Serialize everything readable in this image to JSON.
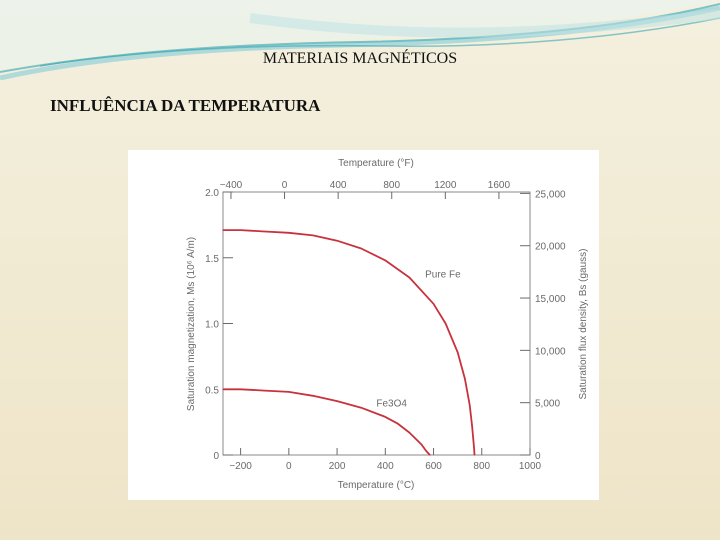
{
  "slide": {
    "title": "MATERIAIS MAGNÉTICOS",
    "subtitle": "INFLUÊNCIA DA TEMPERATURA",
    "accent_color": "#3aa6b4"
  },
  "chart_data": {
    "type": "line",
    "title": "",
    "xlabel": "Temperature (°C)",
    "xlabel_top": "Temperature (°F)",
    "ylabel": "Saturation magnetization, Ms (10⁶ A/m)",
    "ylabel_right": "Saturation flux density, Bs (gauss)",
    "xlim": [
      -273,
      1000
    ],
    "ylim": [
      0,
      2.0
    ],
    "x_ticks": [
      -200,
      0,
      200,
      400,
      600,
      800,
      1000
    ],
    "x_tick_labels": [
      "−200",
      "0",
      "200",
      "400",
      "600",
      "800",
      "1000"
    ],
    "x_top_ticks_F": [
      -400,
      0,
      400,
      800,
      1200,
      1600
    ],
    "x_top_tick_labels": [
      "−400",
      "0",
      "400",
      "800",
      "1200",
      "1600"
    ],
    "y_ticks": [
      0,
      0.5,
      1.0,
      1.5,
      2.0
    ],
    "y_tick_labels": [
      "0",
      "0.5",
      "1.0",
      "1.5",
      "2.0"
    ],
    "y_right_ticks_gauss": [
      0,
      5000,
      10000,
      15000,
      20000,
      25000
    ],
    "y_right_tick_labels": [
      "0",
      "5,000",
      "10,000",
      "15,000",
      "20,000",
      "25,000"
    ],
    "grid": false,
    "series": [
      {
        "name": "Pure Fe",
        "color": "#c8323c",
        "x": [
          -273,
          -200,
          -100,
          0,
          100,
          200,
          300,
          400,
          500,
          600,
          650,
          700,
          730,
          750,
          760,
          768,
          770
        ],
        "y": [
          1.71,
          1.71,
          1.7,
          1.69,
          1.67,
          1.63,
          1.57,
          1.48,
          1.35,
          1.15,
          1.0,
          0.78,
          0.58,
          0.38,
          0.22,
          0.05,
          0
        ]
      },
      {
        "name": "Fe3O4",
        "color": "#c8323c",
        "x": [
          -273,
          -200,
          -100,
          0,
          100,
          200,
          300,
          400,
          450,
          500,
          550,
          570,
          585
        ],
        "y": [
          0.5,
          0.5,
          0.49,
          0.48,
          0.45,
          0.41,
          0.36,
          0.29,
          0.24,
          0.17,
          0.08,
          0.03,
          0
        ]
      }
    ],
    "series_label_positions": {
      "Pure Fe": [
        565,
        1.35
      ],
      "Fe3O4": [
        363,
        0.37
      ]
    }
  }
}
